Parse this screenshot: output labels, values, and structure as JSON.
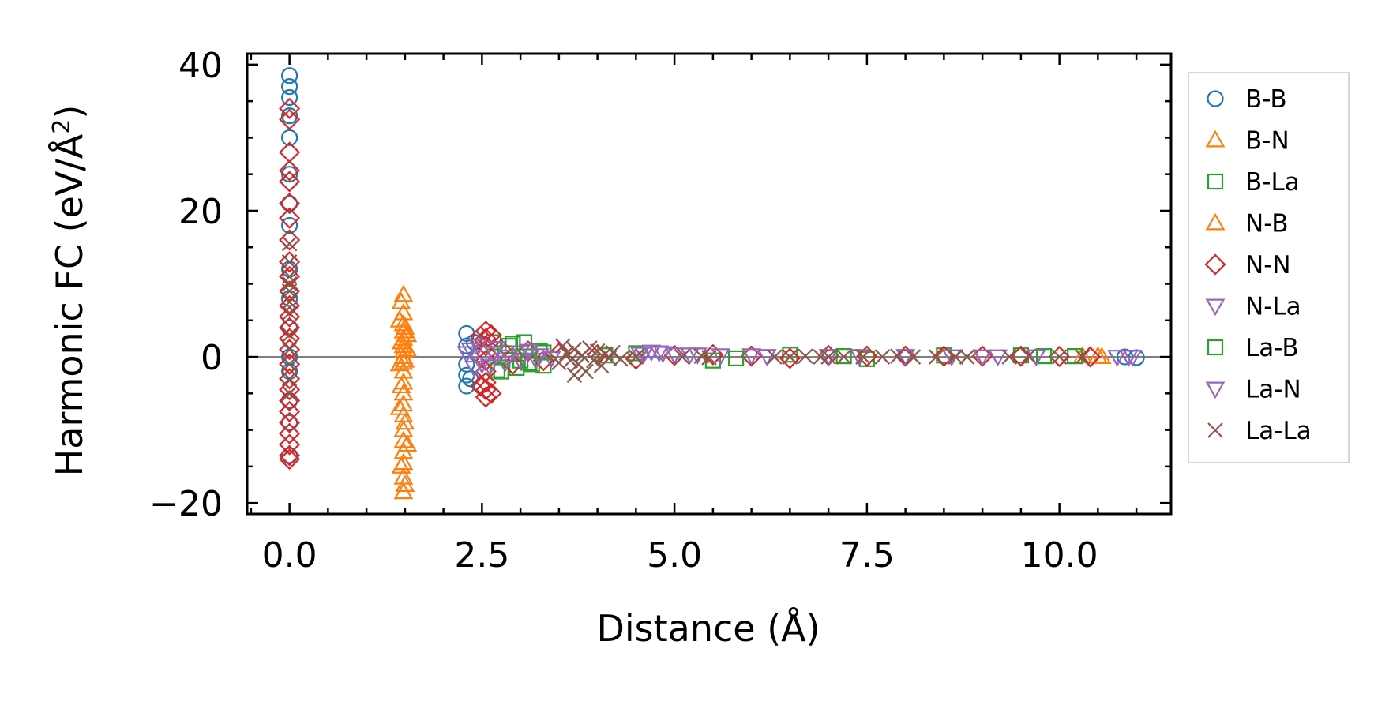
{
  "chart_data": {
    "type": "scatter",
    "title": "",
    "xlabel": "Distance (Å)",
    "ylabel": "Harmonic FC (eV/Å",
    "ylabel_superscript": "2",
    "ylabel_close": ")",
    "xlim": [
      -0.55,
      11.45
    ],
    "ylim": [
      -21.5,
      41.5
    ],
    "xticks": [
      0.0,
      2.5,
      5.0,
      7.5,
      10.0
    ],
    "xtick_labels": [
      "0.0",
      "2.5",
      "5.0",
      "7.5",
      "10.0"
    ],
    "yticks": [
      -20,
      0,
      20,
      40
    ],
    "ytick_labels": [
      "−20",
      "0",
      "20",
      "40"
    ],
    "x_minor_step": 0.5,
    "y_minor_step": 5,
    "zero_line": 0,
    "legend_position": "outside-right",
    "series": [
      {
        "name": "B-B",
        "marker": "circle",
        "color": "#1f77b4",
        "points": [
          [
            0,
            38.5
          ],
          [
            0,
            37
          ],
          [
            0,
            35.5
          ],
          [
            0,
            33
          ],
          [
            0,
            30
          ],
          [
            0,
            25
          ],
          [
            0,
            21
          ],
          [
            0,
            18
          ],
          [
            0,
            12
          ],
          [
            0,
            8
          ],
          [
            0,
            4
          ],
          [
            0,
            0
          ],
          [
            0,
            -2
          ],
          [
            0,
            -6
          ],
          [
            0,
            -9
          ],
          [
            0,
            -13.5
          ],
          [
            2.3,
            3.2
          ],
          [
            2.3,
            1.5
          ],
          [
            2.3,
            -1
          ],
          [
            2.3,
            -2.5
          ],
          [
            2.3,
            -4
          ],
          [
            2.35,
            -3
          ],
          [
            2.4,
            2
          ],
          [
            10.85,
            0
          ],
          [
            11.0,
            -0.1
          ]
        ]
      },
      {
        "name": "B-N",
        "marker": "triangle-up",
        "color": "#ff7f0e",
        "points": [
          [
            1.48,
            8.5
          ],
          [
            1.48,
            6
          ],
          [
            1.48,
            4.5
          ],
          [
            1.48,
            3.5
          ],
          [
            1.48,
            2.5
          ],
          [
            1.48,
            1.5
          ],
          [
            1.48,
            0.8
          ],
          [
            1.48,
            0
          ],
          [
            1.48,
            -0.8
          ],
          [
            1.48,
            -2
          ],
          [
            1.48,
            -3.5
          ],
          [
            1.48,
            -5
          ],
          [
            1.48,
            -6.5
          ],
          [
            1.48,
            -8
          ],
          [
            1.48,
            -10
          ],
          [
            1.48,
            -11.5
          ],
          [
            1.48,
            -13
          ],
          [
            1.48,
            -14.5
          ],
          [
            1.48,
            -16.5
          ],
          [
            1.48,
            -18.5
          ],
          [
            1.43,
            5
          ],
          [
            1.53,
            3
          ],
          [
            1.43,
            -7
          ],
          [
            1.53,
            -12
          ],
          [
            1.43,
            -1
          ],
          [
            1.53,
            1
          ],
          [
            10.3,
            0.1
          ],
          [
            10.55,
            0
          ]
        ]
      },
      {
        "name": "B-La",
        "marker": "square",
        "color": "#2ca02c",
        "points": [
          [
            2.65,
            2
          ],
          [
            2.75,
            -2
          ],
          [
            2.85,
            1.5
          ],
          [
            2.95,
            -1.5
          ],
          [
            3.05,
            2
          ],
          [
            3.15,
            -1
          ],
          [
            3.25,
            0.8
          ],
          [
            2.8,
            0.5
          ],
          [
            3.0,
            -0.5
          ],
          [
            3.3,
            -1.2
          ],
          [
            4.5,
            0.5
          ],
          [
            5.5,
            -0.5
          ],
          [
            6.5,
            0.3
          ],
          [
            7.5,
            -0.3
          ],
          [
            8.5,
            0.2
          ],
          [
            9.5,
            0.2
          ],
          [
            10.2,
            0.1
          ]
        ]
      },
      {
        "name": "N-B",
        "marker": "triangle-up",
        "color": "#ff7f0e",
        "points": [
          [
            1.45,
            7.5
          ],
          [
            1.5,
            4
          ],
          [
            1.45,
            -4
          ],
          [
            1.5,
            -9
          ],
          [
            1.45,
            -15
          ],
          [
            1.5,
            -17.5
          ],
          [
            1.45,
            2
          ],
          [
            1.5,
            -0.5
          ],
          [
            10.5,
            0.1
          ]
        ]
      },
      {
        "name": "N-N",
        "marker": "diamond",
        "color": "#d62728",
        "points": [
          [
            0,
            34
          ],
          [
            0,
            32.5
          ],
          [
            0,
            28
          ],
          [
            0,
            25.5
          ],
          [
            0,
            24
          ],
          [
            0,
            21
          ],
          [
            0,
            19
          ],
          [
            0,
            16
          ],
          [
            0,
            13
          ],
          [
            0,
            11
          ],
          [
            0,
            9
          ],
          [
            0,
            7
          ],
          [
            0,
            5.5
          ],
          [
            0,
            4
          ],
          [
            0,
            2.5
          ],
          [
            0,
            1
          ],
          [
            0,
            -1
          ],
          [
            0,
            -3
          ],
          [
            0,
            -4.5
          ],
          [
            0,
            -6
          ],
          [
            0,
            -7.5
          ],
          [
            0,
            -9
          ],
          [
            0,
            -10.5
          ],
          [
            0,
            -12
          ],
          [
            0,
            -13.5
          ],
          [
            0,
            -14
          ],
          [
            2.55,
            3.5
          ],
          [
            2.55,
            2.5
          ],
          [
            2.55,
            1.5
          ],
          [
            2.55,
            0.5
          ],
          [
            2.55,
            -0.5
          ],
          [
            2.55,
            -2
          ],
          [
            2.55,
            -3.5
          ],
          [
            2.55,
            -4.5
          ],
          [
            2.55,
            -5.5
          ],
          [
            2.62,
            3
          ],
          [
            2.62,
            -5
          ],
          [
            2.48,
            2.8
          ],
          [
            2.48,
            -4
          ],
          [
            2.75,
            1
          ],
          [
            2.9,
            -1
          ],
          [
            3.1,
            0.8
          ],
          [
            3.3,
            -0.5
          ],
          [
            3.5,
            0.5
          ],
          [
            4,
            0.3
          ],
          [
            4.5,
            -0.3
          ],
          [
            5,
            0.2
          ],
          [
            5.5,
            0.3
          ],
          [
            6,
            0.1
          ],
          [
            6.5,
            -0.2
          ],
          [
            7,
            0.2
          ],
          [
            7.5,
            0.1
          ],
          [
            8,
            0.1
          ],
          [
            8.5,
            0.1
          ],
          [
            9,
            0.1
          ],
          [
            9.5,
            0.1
          ],
          [
            10,
            0.05
          ],
          [
            10.4,
            0
          ]
        ]
      },
      {
        "name": "N-La",
        "marker": "triangle-down",
        "color": "#9467bd",
        "points": [
          [
            2.35,
            1
          ],
          [
            2.5,
            -1
          ],
          [
            2.65,
            0.5
          ],
          [
            2.8,
            -0.8
          ],
          [
            3.0,
            0.6
          ],
          [
            3.2,
            -0.4
          ],
          [
            4.6,
            0.4
          ],
          [
            4.8,
            0.6
          ],
          [
            5.2,
            0.3
          ],
          [
            6.0,
            0.2
          ],
          [
            7.0,
            0.1
          ],
          [
            8.0,
            0.1
          ],
          [
            9.0,
            0.05
          ],
          [
            10.9,
            0
          ]
        ]
      },
      {
        "name": "La-B",
        "marker": "square",
        "color": "#2ca02c",
        "points": [
          [
            2.7,
            -1.8
          ],
          [
            2.9,
            1.8
          ],
          [
            3.1,
            -0.8
          ],
          [
            3.3,
            0.6
          ],
          [
            4.1,
            0.2
          ],
          [
            5.8,
            -0.2
          ],
          [
            7.2,
            0.1
          ],
          [
            9.8,
            0.1
          ]
        ]
      },
      {
        "name": "La-N",
        "marker": "triangle-down",
        "color": "#9467bd",
        "points": [
          [
            2.3,
            0.5
          ],
          [
            2.4,
            -1.5
          ],
          [
            2.45,
            1.5
          ],
          [
            2.6,
            -1.3
          ],
          [
            2.7,
            1.2
          ],
          [
            2.85,
            0
          ],
          [
            3.0,
            -0.5
          ],
          [
            3.1,
            0.8
          ],
          [
            3.25,
            0.2
          ],
          [
            3.4,
            -0.2
          ],
          [
            4.55,
            0.4
          ],
          [
            4.7,
            0.7
          ],
          [
            4.85,
            0.5
          ],
          [
            5.0,
            0.3
          ],
          [
            5.3,
            0.3
          ],
          [
            5.6,
            0.2
          ],
          [
            6.2,
            0.1
          ],
          [
            7.4,
            0.1
          ],
          [
            8.6,
            0.05
          ],
          [
            9.2,
            0.05
          ],
          [
            9.7,
            0.05
          ],
          [
            10.75,
            0
          ],
          [
            10.95,
            0
          ]
        ]
      },
      {
        "name": "La-La",
        "marker": "x",
        "color": "#8c564b",
        "points": [
          [
            0,
            15.5
          ],
          [
            0,
            13
          ],
          [
            0,
            11
          ],
          [
            0,
            10
          ],
          [
            0,
            9
          ],
          [
            0,
            7.5
          ],
          [
            0,
            6
          ],
          [
            0,
            3
          ],
          [
            0,
            1
          ],
          [
            0,
            -1
          ],
          [
            0,
            -3
          ],
          [
            0,
            -5
          ],
          [
            3.55,
            1.5
          ],
          [
            3.6,
            0.5
          ],
          [
            3.65,
            -0.5
          ],
          [
            3.7,
            1
          ],
          [
            3.75,
            -1
          ],
          [
            3.8,
            0.2
          ],
          [
            3.85,
            -2
          ],
          [
            3.9,
            1.2
          ],
          [
            3.95,
            -0.5
          ],
          [
            4.0,
            0.8
          ],
          [
            4.05,
            -1.2
          ],
          [
            4.1,
            0.4
          ],
          [
            4.15,
            -0.2
          ],
          [
            4.2,
            0.6
          ],
          [
            4.3,
            -0.3
          ],
          [
            3.5,
            -0.8
          ],
          [
            3.7,
            -2.5
          ],
          [
            4.5,
            0
          ],
          [
            5.1,
            0
          ],
          [
            5.35,
            0.1
          ],
          [
            5.45,
            -0.1
          ],
          [
            6.3,
            0
          ],
          [
            6.5,
            0
          ],
          [
            6.7,
            0.1
          ],
          [
            6.9,
            0
          ],
          [
            7.0,
            0
          ],
          [
            7.2,
            0
          ],
          [
            7.45,
            0
          ],
          [
            7.7,
            0
          ],
          [
            7.9,
            0.1
          ],
          [
            8.1,
            0
          ],
          [
            8.4,
            0
          ],
          [
            8.65,
            0
          ],
          [
            8.8,
            0
          ],
          [
            9.35,
            0
          ],
          [
            9.6,
            0.1
          ],
          [
            10.0,
            0
          ],
          [
            10.3,
            0
          ]
        ]
      }
    ]
  }
}
